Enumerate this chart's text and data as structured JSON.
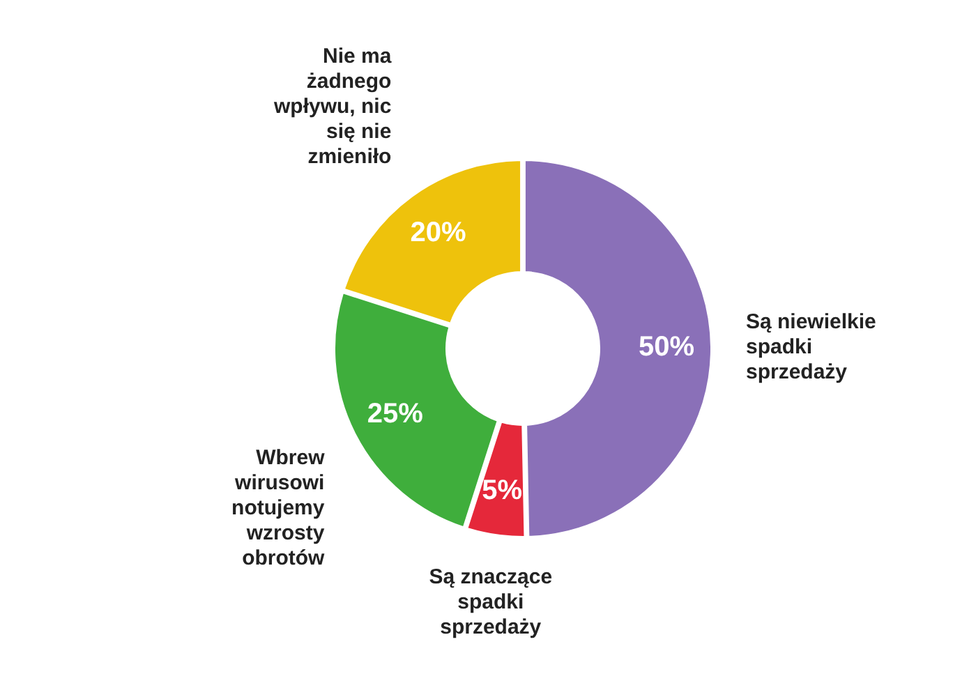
{
  "chart_data": {
    "type": "donut",
    "categories": [
      "Są niewielkie spadki sprzedaży",
      "Są znaczące spadki sprzedaży",
      "Wbrew wirusowi notujemy wzrosty obrotów",
      "Nie ma żadnego wpływu, nic się nie zmieniło"
    ],
    "values": [
      50,
      5,
      25,
      20
    ],
    "value_labels": [
      "50%",
      "5%",
      "25%",
      "20%"
    ],
    "colors": [
      "#8a70b8",
      "#e5283a",
      "#3fae3c",
      "#eec20c"
    ]
  }
}
